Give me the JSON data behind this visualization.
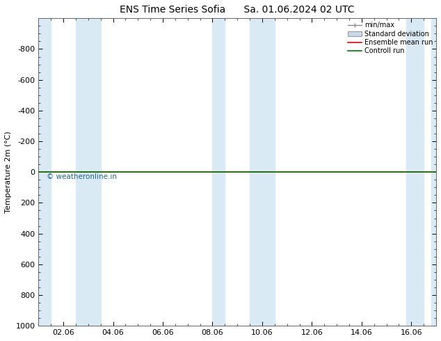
{
  "title": "ENS Time Series Sofia      Sa. 01.06.2024 02 UTC",
  "ylabel": "Temperature 2m (°C)",
  "ylim_top": -1000,
  "ylim_bottom": 1000,
  "yticks": [
    -800,
    -600,
    -400,
    -200,
    0,
    200,
    400,
    600,
    800,
    1000
  ],
  "xlim": [
    0,
    16
  ],
  "xtick_labels": [
    "02.06",
    "04.06",
    "06.06",
    "08.06",
    "10.06",
    "12.06",
    "14.06",
    "16.06"
  ],
  "xtick_positions": [
    1,
    3,
    5,
    7,
    9,
    11,
    13,
    15
  ],
  "bg_color": "#ffffff",
  "plot_bg_color": "#ffffff",
  "band_color": "#daeaf5",
  "green_line_y": 0,
  "red_line_y": 0,
  "green_line_color": "#007700",
  "red_line_color": "#ee0000",
  "watermark": "© weatheronline.in",
  "watermark_color": "#1a6699",
  "legend_items": [
    "min/max",
    "Standard deviation",
    "Ensemble mean run",
    "Controll run"
  ],
  "legend_colors_line": [
    "#888888",
    "#bbccdd",
    "#ee0000",
    "#007700"
  ],
  "shade_bands": [
    [
      0,
      0.5
    ],
    [
      1.5,
      2.5
    ],
    [
      7.0,
      7.5
    ],
    [
      8.5,
      9.5
    ],
    [
      14.8,
      15.5
    ],
    [
      15.8,
      16.0
    ]
  ],
  "title_fontsize": 10,
  "ylabel_fontsize": 8,
  "tick_labelsize": 8
}
